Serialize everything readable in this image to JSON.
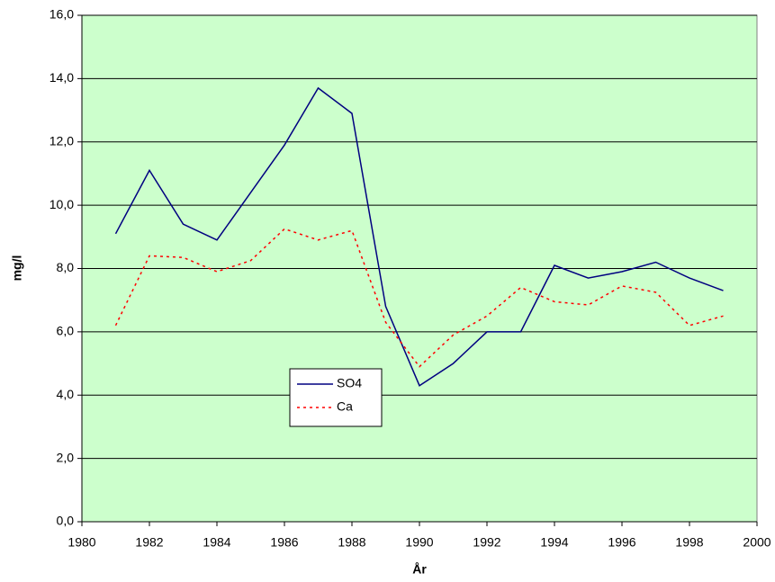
{
  "chart_data": {
    "type": "line",
    "x_label": "År",
    "y_label": "mg/l",
    "x": [
      1981,
      1982,
      1983,
      1984,
      1985,
      1986,
      1987,
      1988,
      1989,
      1990,
      1991,
      1992,
      1993,
      1994,
      1995,
      1996,
      1997,
      1998,
      1999
    ],
    "series": [
      {
        "name": "SO4",
        "color": "#000080",
        "linestyle": "solid",
        "values": [
          9.1,
          11.1,
          9.4,
          8.9,
          10.4,
          11.9,
          13.7,
          12.9,
          6.8,
          4.3,
          5.0,
          6.0,
          6.0,
          8.1,
          7.7,
          7.9,
          8.2,
          7.7,
          7.3
        ]
      },
      {
        "name": "Ca",
        "color": "#ff0000",
        "linestyle": "dotted",
        "values": [
          6.2,
          8.4,
          8.35,
          7.9,
          8.25,
          9.25,
          8.9,
          9.2,
          6.3,
          4.9,
          5.9,
          6.5,
          7.4,
          6.95,
          6.85,
          7.45,
          7.25,
          6.2,
          6.5
        ]
      }
    ],
    "xlim": [
      1980,
      2000
    ],
    "xticks": [
      1980,
      1982,
      1984,
      1986,
      1988,
      1990,
      1992,
      1994,
      1996,
      1998,
      2000
    ],
    "ylim": [
      0,
      16
    ],
    "yticks": [
      {
        "value": 0,
        "label": "0,0"
      },
      {
        "value": 2,
        "label": "2,0"
      },
      {
        "value": 4,
        "label": "4,0"
      },
      {
        "value": 6,
        "label": "6,0"
      },
      {
        "value": 8,
        "label": "8,0"
      },
      {
        "value": 10,
        "label": "10,0"
      },
      {
        "value": 12,
        "label": "12,0"
      },
      {
        "value": 14,
        "label": "14,0"
      },
      {
        "value": 16,
        "label": "16,0"
      }
    ],
    "grid": true,
    "plot_background": "#ccffcc"
  }
}
